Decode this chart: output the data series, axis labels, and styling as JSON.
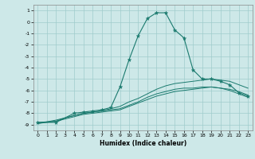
{
  "xlabel": "Humidex (Indice chaleur)",
  "xlim": [
    -0.5,
    23.5
  ],
  "ylim": [
    -9.5,
    1.5
  ],
  "yticks": [
    1,
    0,
    -1,
    -2,
    -3,
    -4,
    -5,
    -6,
    -7,
    -8,
    -9
  ],
  "xticks": [
    0,
    1,
    2,
    3,
    4,
    5,
    6,
    7,
    8,
    9,
    10,
    11,
    12,
    13,
    14,
    15,
    16,
    17,
    18,
    19,
    20,
    21,
    22,
    23
  ],
  "background_color": "#cde8e8",
  "grid_color": "#a0cccc",
  "line_color": "#1a7a6e",
  "line1_x": [
    0,
    2,
    4,
    5,
    6,
    7,
    8,
    9,
    10,
    11,
    12,
    13,
    14,
    15,
    16,
    17,
    18,
    19,
    20,
    21,
    22,
    23
  ],
  "line1_y": [
    -8.8,
    -8.8,
    -8.0,
    -7.9,
    -7.8,
    -7.7,
    -7.5,
    -5.7,
    -3.3,
    -1.2,
    0.3,
    0.8,
    0.8,
    -0.7,
    -1.4,
    -4.2,
    -5.0,
    -5.0,
    -5.2,
    -5.5,
    -6.2,
    -6.5
  ],
  "line2_x": [
    0,
    2,
    3,
    4,
    5,
    6,
    7,
    8,
    9,
    10,
    11,
    12,
    13,
    14,
    15,
    16,
    17,
    18,
    19,
    20,
    21,
    22,
    23
  ],
  "line2_y": [
    -8.8,
    -8.7,
    -8.4,
    -8.2,
    -8.0,
    -7.9,
    -7.8,
    -7.6,
    -7.4,
    -7.0,
    -6.7,
    -6.3,
    -5.9,
    -5.6,
    -5.4,
    -5.3,
    -5.2,
    -5.1,
    -5.0,
    -5.1,
    -5.2,
    -5.5,
    -5.8
  ],
  "line3_x": [
    0,
    2,
    3,
    4,
    5,
    6,
    7,
    8,
    9,
    10,
    11,
    12,
    13,
    14,
    15,
    16,
    17,
    18,
    19,
    20,
    21,
    22,
    23
  ],
  "line3_y": [
    -8.9,
    -8.7,
    -8.5,
    -8.3,
    -8.1,
    -8.0,
    -7.9,
    -7.8,
    -7.7,
    -7.4,
    -7.1,
    -6.8,
    -6.5,
    -6.3,
    -6.1,
    -6.0,
    -5.9,
    -5.8,
    -5.7,
    -5.8,
    -5.9,
    -6.1,
    -6.4
  ],
  "line4_x": [
    0,
    2,
    3,
    4,
    5,
    6,
    7,
    8,
    9,
    10,
    11,
    12,
    13,
    14,
    15,
    16,
    17,
    18,
    19,
    20,
    21,
    22,
    23
  ],
  "line4_y": [
    -8.9,
    -8.6,
    -8.4,
    -8.2,
    -8.0,
    -7.9,
    -7.8,
    -7.7,
    -7.6,
    -7.3,
    -7.0,
    -6.6,
    -6.3,
    -6.1,
    -5.9,
    -5.8,
    -5.8,
    -5.7,
    -5.7,
    -5.8,
    -6.0,
    -6.3,
    -6.6
  ]
}
